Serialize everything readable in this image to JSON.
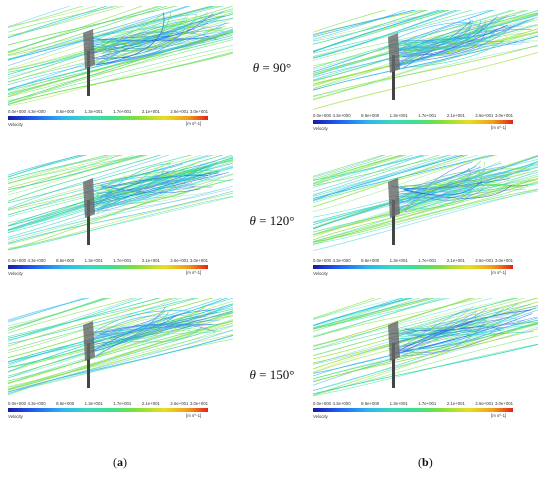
{
  "legend": {
    "ticks": [
      "0.0e+000",
      "4.3e+000",
      "8.6e+000",
      "1.3e+001",
      "1.7e+001",
      "2.1e+001",
      "2.6e+001",
      "3.0e+001"
    ],
    "variable": "Velocity",
    "unit": "[m s^-1]",
    "colors": [
      "#1a1aa8",
      "#1c5cf0",
      "#2fb6f0",
      "#39d9c0",
      "#3fe08a",
      "#7fe03a",
      "#e6e020",
      "#f29c1a",
      "#e22418"
    ]
  },
  "angles": [
    {
      "symbol": "θ",
      "value": " = 90°"
    },
    {
      "symbol": "θ",
      "value": " = 120°"
    },
    {
      "symbol": "θ",
      "value": " = 150°"
    }
  ],
  "subfigures": {
    "a": "a",
    "b": "b"
  }
}
